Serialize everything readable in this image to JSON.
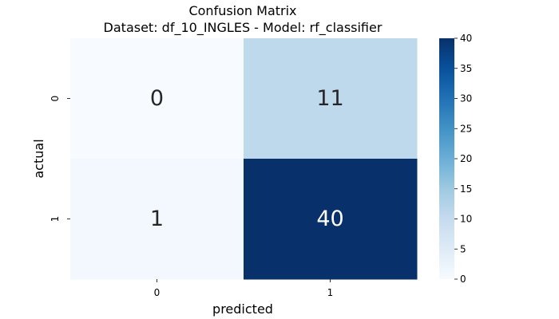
{
  "chart_data": {
    "type": "heatmap",
    "title_line1": "Confusion Matrix",
    "title_line2": "Dataset: df_10_INGLES  -  Model: rf_classifier",
    "xlabel": "predicted",
    "ylabel": "actual",
    "x_categories": [
      "0",
      "1"
    ],
    "y_categories": [
      "0",
      "1"
    ],
    "values": [
      [
        0,
        11
      ],
      [
        1,
        40
      ]
    ],
    "colorbar": {
      "min": 0,
      "max": 40,
      "ticks": [
        0,
        5,
        10,
        15,
        20,
        25,
        30,
        35,
        40
      ],
      "colormap": "Blues"
    },
    "grid": false
  },
  "colors": {
    "low": "#f7fbff",
    "high": "#08306b",
    "text_dark": "#262626",
    "text_light": "#ffffff"
  }
}
